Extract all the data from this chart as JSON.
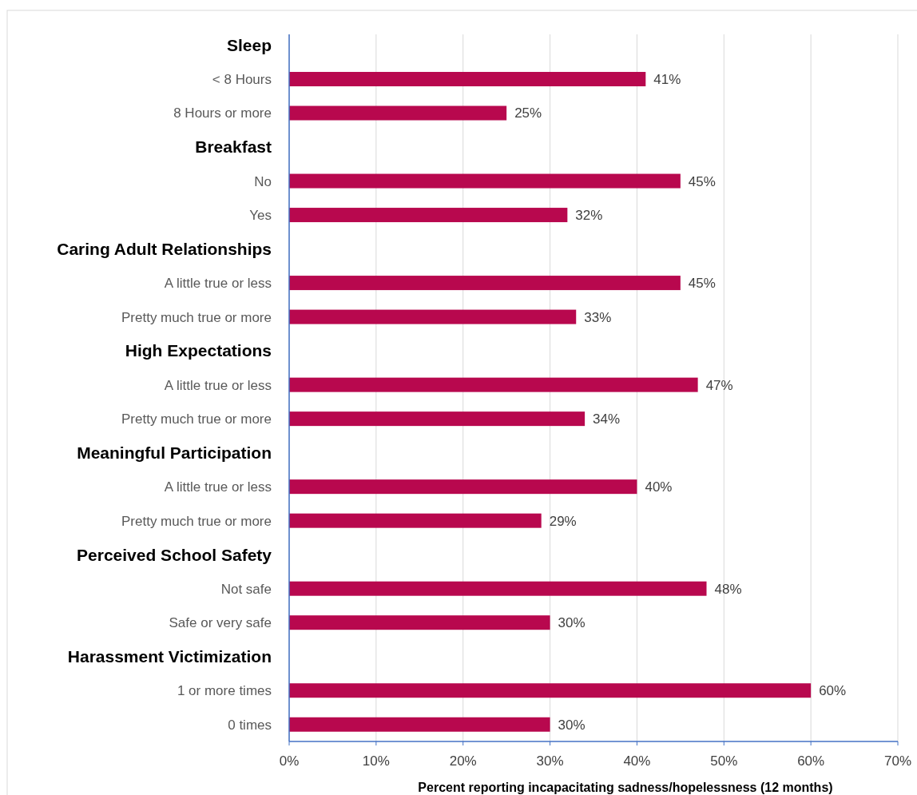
{
  "chart_data": {
    "type": "bar",
    "orientation": "horizontal",
    "xlabel": "Percent reporting incapacitating sadness/hopelessness (12 months)",
    "categories": [
      "Sleep",
      "< 8 Hours",
      "8 Hours or more",
      "Breakfast",
      "No",
      "Yes",
      "Caring Adult Relationships",
      "A little true or less",
      "Pretty much true or more",
      "High Expectations",
      "A little true or less",
      "Pretty much true or more",
      "Meaningful Participation",
      "A little true or less",
      "Pretty much true or more",
      "Perceived School Safety",
      "Not safe",
      "Safe or very safe",
      "Harassment Victimization",
      "1 or more times",
      "0 times"
    ],
    "series": [
      {
        "color": "#b8084e",
        "values": [
          null,
          41,
          25,
          null,
          45,
          32,
          null,
          45,
          33,
          null,
          47,
          34,
          null,
          40,
          29,
          null,
          48,
          30,
          null,
          60,
          30
        ],
        "value_labels": [
          null,
          "41%",
          "25%",
          null,
          "45%",
          "32%",
          null,
          "45%",
          "33%",
          null,
          "47%",
          "34%",
          null,
          "40%",
          "29%",
          null,
          "48%",
          "30%",
          null,
          "60%",
          "30%"
        ]
      }
    ],
    "xlim": [
      0,
      70
    ],
    "xticks": [
      {
        "value": 0,
        "label": "0%"
      },
      {
        "value": 10,
        "label": "10%"
      },
      {
        "value": 20,
        "label": "20%"
      },
      {
        "value": 30,
        "label": "30%"
      },
      {
        "value": 40,
        "label": "40%"
      },
      {
        "value": 50,
        "label": "50%"
      },
      {
        "value": 60,
        "label": "60%"
      },
      {
        "value": 70,
        "label": "70%"
      }
    ],
    "grid": "x"
  }
}
